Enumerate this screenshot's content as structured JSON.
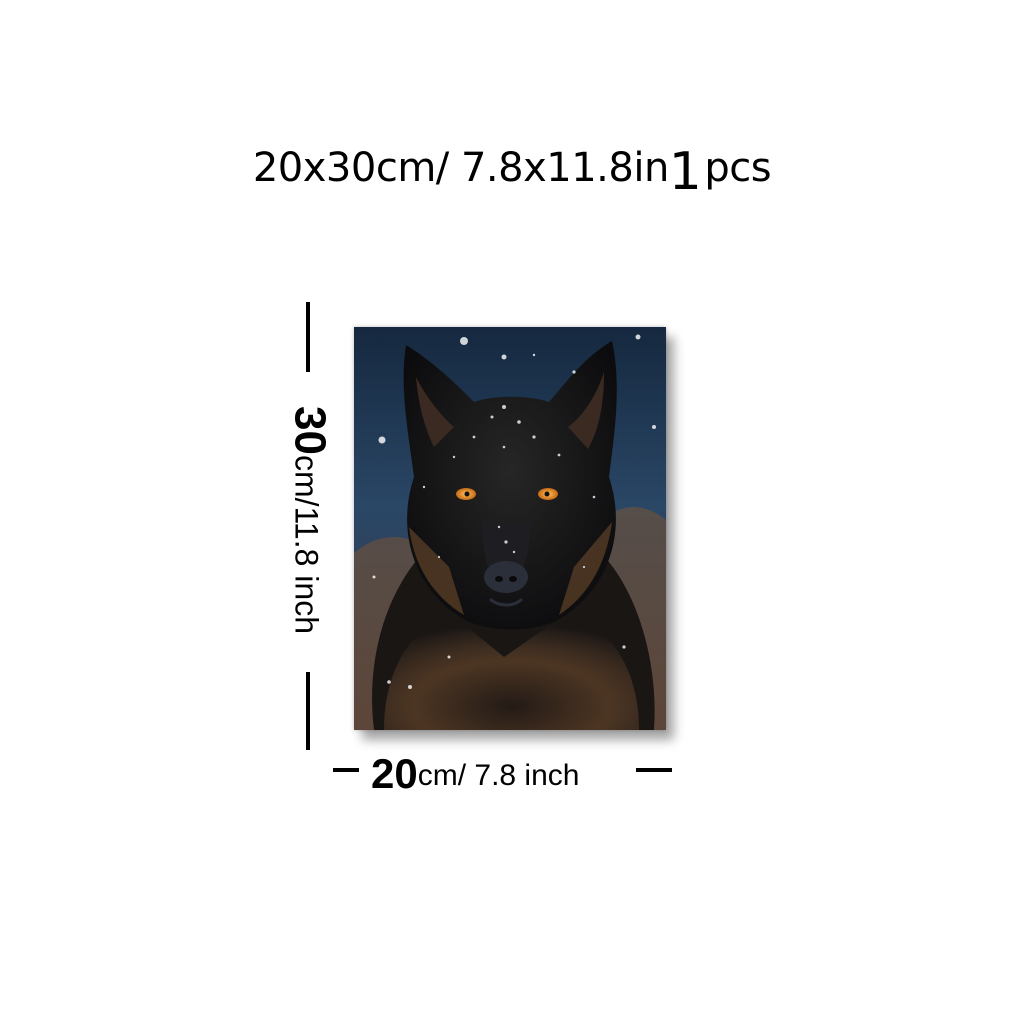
{
  "title": {
    "size": "20x30cm/ 7.8x11.8in",
    "qty_number": "1",
    "qty_unit": "pcs"
  },
  "height_label": {
    "number": "30",
    "unit": "cm/11.8 inch"
  },
  "width_label": {
    "number": "20",
    "unit": "cm/ 7.8 inch"
  },
  "image": {
    "subject": "black wolf portrait in snow",
    "colors": {
      "background": "#1c3350",
      "fur": "#141414",
      "fur_warm": "#7a5433",
      "eyes": "#e8902a"
    }
  }
}
